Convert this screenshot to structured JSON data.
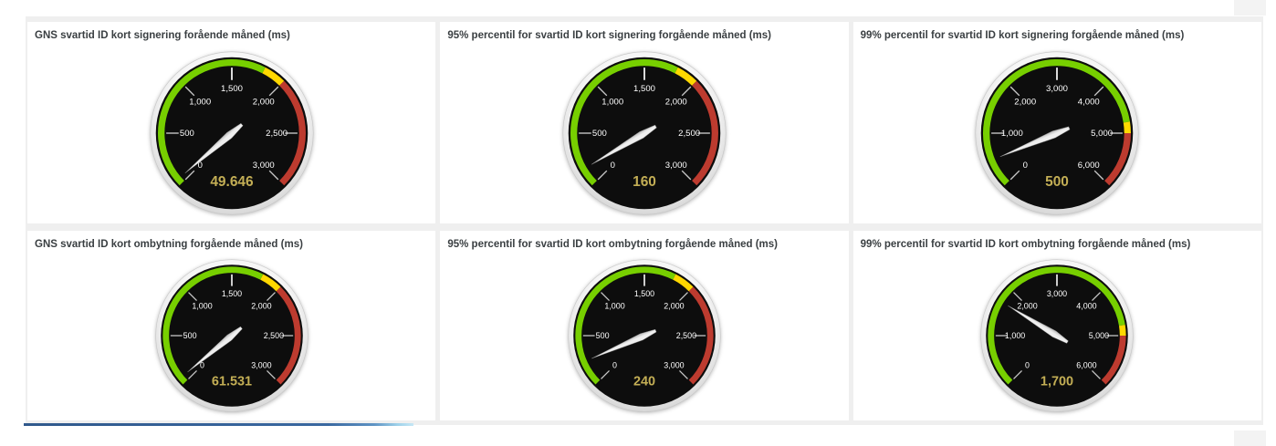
{
  "chart_data": [
    {
      "type": "gauge",
      "title": "GNS svartid ID kort signering forående måned (ms)",
      "value": 49.646,
      "value_label": "49.646",
      "min": 0,
      "max": 3000,
      "tick_labels": [
        "0",
        "500",
        "1,000",
        "1,500",
        "2,000",
        "2,500",
        "3,000"
      ],
      "thresholds": {
        "warning": 1800,
        "critical": 2000
      }
    },
    {
      "type": "gauge",
      "title": "95% percentil for svartid ID kort signering forgående måned (ms)",
      "value": 160,
      "value_label": "160",
      "min": 0,
      "max": 3000,
      "tick_labels": [
        "0",
        "500",
        "1,000",
        "1,500",
        "2,000",
        "2,500",
        "3,000"
      ],
      "thresholds": {
        "warning": 1800,
        "critical": 2000
      }
    },
    {
      "type": "gauge",
      "title": "99% percentil for svartid ID kort signering forgående måned (ms)",
      "value": 500,
      "value_label": "500",
      "min": 0,
      "max": 6000,
      "tick_labels": [
        "0",
        "1,000",
        "2,000",
        "3,000",
        "4,000",
        "5,000",
        "6,000"
      ],
      "thresholds": {
        "warning": 4800,
        "critical": 5000
      }
    },
    {
      "type": "gauge",
      "title": "GNS svartid ID kort ombytning forgående måned (ms)",
      "value": 61.531,
      "value_label": "61.531",
      "min": 0,
      "max": 3000,
      "tick_labels": [
        "0",
        "500",
        "1,000",
        "1,500",
        "2,000",
        "2,500",
        "3,000"
      ],
      "thresholds": {
        "warning": 1800,
        "critical": 2000
      }
    },
    {
      "type": "gauge",
      "title": "95% percentil for svartid ID kort ombytning forgående måned (ms)",
      "value": 240,
      "value_label": "240",
      "min": 0,
      "max": 3000,
      "tick_labels": [
        "0",
        "500",
        "1,000",
        "1,500",
        "2,000",
        "2,500",
        "3,000"
      ],
      "thresholds": {
        "warning": 1800,
        "critical": 2000
      }
    },
    {
      "type": "gauge",
      "title": "99% percentil for svartid ID kort ombytning forgående måned (ms)",
      "value": 1700,
      "value_label": "1,700",
      "min": 0,
      "max": 6000,
      "tick_labels": [
        "0",
        "1,000",
        "2,000",
        "3,000",
        "4,000",
        "5,000",
        "6,000"
      ],
      "thresholds": {
        "warning": 4800,
        "critical": 5000
      }
    }
  ],
  "gauge_style": {
    "green": "#77cf00",
    "yellow": "#ffd800",
    "red": "#bd3b2f",
    "face": "#0d0d0d",
    "rim_light": "#f6f6f6",
    "rim_dark": "#d4d4d4",
    "needle_light": "#efefef",
    "needle_dark": "#b9b9b9",
    "needle_edge": "#8f8f8f",
    "tick_line": "#c9c9c9",
    "tick_text": "#ffffff",
    "value_text": "#c3ae55",
    "sweep_degrees": 270
  },
  "layout_colors": {
    "dashboard_background": "#efefef",
    "panel_background": "#ffffff",
    "title_color": "#3a3f42",
    "corner_block": "#f3f3f3",
    "progress_bar_left": "#30598c",
    "progress_bar_right": "#c6e7f5"
  }
}
